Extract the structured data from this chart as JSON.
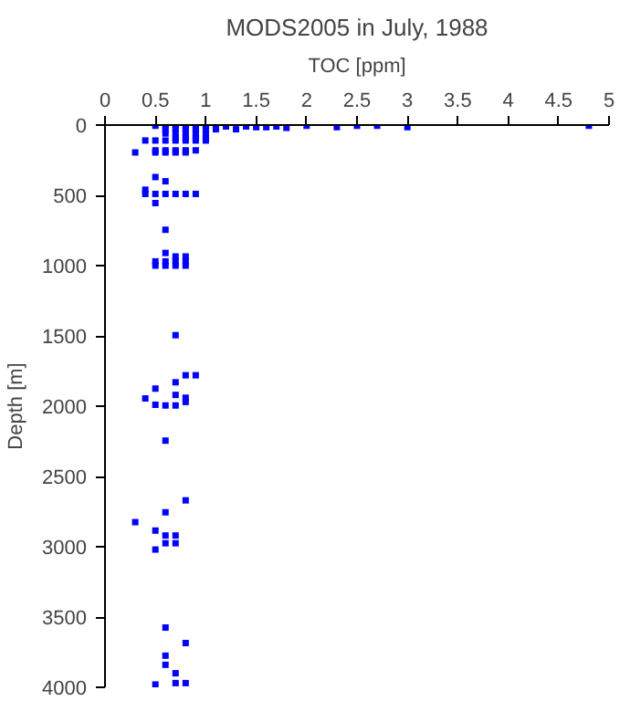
{
  "chart_data": {
    "type": "scatter",
    "title": "MODS2005 in July, 1988",
    "xlabel": "TOC [ppm]",
    "ylabel": "Depth [m]",
    "xlim": [
      0,
      5
    ],
    "xticks": [
      0,
      0.5,
      1,
      1.5,
      2,
      2.5,
      3,
      3.5,
      4,
      4.5,
      5
    ],
    "ylim": [
      4000,
      0
    ],
    "yticks": [
      0,
      500,
      1000,
      1500,
      2000,
      2500,
      3000,
      3500,
      4000
    ],
    "marker": "square",
    "grid": false,
    "series": [
      {
        "color": "#0000ff",
        "x": [
          0.5,
          0.6,
          0.7,
          0.8,
          0.9,
          1.0,
          1.1,
          1.2,
          1.3,
          1.4,
          1.5,
          1.6,
          1.7,
          1.8,
          2.0,
          2.3,
          2.5,
          2.7,
          3.0,
          4.8,
          0.6,
          0.7,
          0.8,
          0.9,
          1.0,
          1.1,
          0.6,
          0.7,
          0.8,
          0.9,
          1.0,
          0.7,
          0.8,
          0.9,
          1.0,
          0.4,
          0.5,
          0.6,
          0.7,
          0.8,
          0.9,
          1.0,
          0.5,
          0.6,
          0.7,
          0.8,
          0.9,
          0.3,
          0.5,
          0.6,
          0.7,
          0.8,
          0.5,
          0.6,
          0.4,
          0.4,
          0.5,
          0.6,
          0.7,
          0.8,
          0.9,
          0.5,
          0.6,
          0.6,
          0.7,
          0.8,
          0.5,
          0.6,
          0.7,
          0.8,
          0.5,
          0.6,
          0.7,
          0.8,
          0.7,
          0.8,
          0.9,
          0.7,
          0.5,
          0.4,
          0.7,
          0.8,
          0.8,
          0.5,
          0.6,
          0.7,
          0.6,
          0.8,
          0.6,
          0.3,
          0.5,
          0.6,
          0.7,
          0.6,
          0.7,
          0.5,
          0.6,
          0.8,
          0.6,
          0.6,
          0.7,
          0.5,
          0.7,
          0.8
        ],
        "values": [
          5,
          5,
          5,
          5,
          5,
          5,
          5,
          10,
          30,
          10,
          15,
          15,
          10,
          20,
          5,
          15,
          5,
          5,
          15,
          5,
          30,
          30,
          30,
          30,
          30,
          30,
          60,
          60,
          60,
          60,
          60,
          90,
          90,
          90,
          90,
          110,
          110,
          110,
          110,
          110,
          110,
          110,
          180,
          180,
          180,
          180,
          180,
          195,
          195,
          195,
          195,
          195,
          370,
          400,
          460,
          490,
          490,
          490,
          490,
          490,
          490,
          555,
          745,
          910,
          935,
          935,
          970,
          970,
          970,
          970,
          1000,
          1000,
          1000,
          1000,
          1495,
          1780,
          1780,
          1830,
          1875,
          1945,
          1920,
          1940,
          1970,
          1990,
          1995,
          1995,
          2245,
          2670,
          2755,
          2825,
          2885,
          2920,
          2920,
          2975,
          2975,
          3020,
          3575,
          3685,
          3775,
          3840,
          3900,
          3980,
          3970,
          3970
        ]
      }
    ]
  }
}
